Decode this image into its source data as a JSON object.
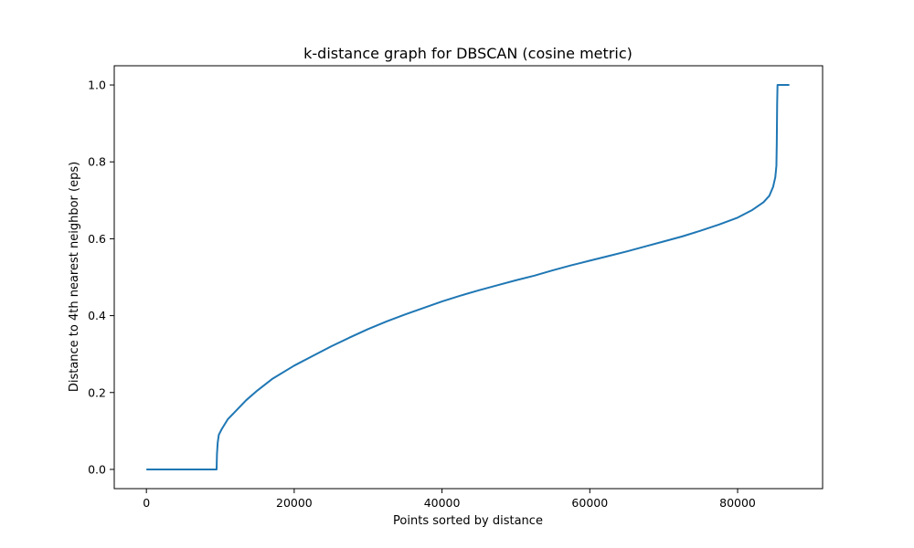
{
  "chart_data": {
    "type": "line",
    "title": "k-distance graph for DBSCAN (cosine metric)",
    "xlabel": "Points sorted by distance",
    "ylabel": "Distance to 4th nearest neighbor (eps)",
    "xlim": [
      -4350,
      91500
    ],
    "ylim": [
      -0.05,
      1.05
    ],
    "xticks": [
      0,
      20000,
      40000,
      60000,
      80000
    ],
    "yticks": [
      0.0,
      0.2,
      0.4,
      0.6,
      0.8,
      1.0
    ],
    "xtick_labels": [
      "0",
      "20000",
      "40000",
      "60000",
      "80000"
    ],
    "ytick_labels": [
      "0.0",
      "0.2",
      "0.4",
      "0.6",
      "0.8",
      "1.0"
    ],
    "grid": false,
    "series": [
      {
        "color": "#1f77b4",
        "x": [
          0,
          9500,
          9550,
          9650,
          9800,
          10200,
          11000,
          12000,
          13500,
          15000,
          17000,
          20000,
          22500,
          25000,
          27500,
          30000,
          32500,
          35000,
          37500,
          40000,
          42500,
          45000,
          47500,
          50000,
          52500,
          55000,
          57500,
          60000,
          62500,
          65000,
          67500,
          70000,
          72500,
          75000,
          77500,
          80000,
          82000,
          83500,
          84300,
          84800,
          85100,
          85250,
          85300,
          85350,
          85400,
          87000
        ],
        "y": [
          0.0,
          0.0,
          0.04,
          0.07,
          0.09,
          0.105,
          0.13,
          0.15,
          0.18,
          0.205,
          0.235,
          0.27,
          0.295,
          0.32,
          0.343,
          0.365,
          0.385,
          0.403,
          0.42,
          0.437,
          0.452,
          0.466,
          0.479,
          0.492,
          0.504,
          0.518,
          0.531,
          0.543,
          0.555,
          0.567,
          0.58,
          0.593,
          0.606,
          0.621,
          0.637,
          0.655,
          0.675,
          0.695,
          0.712,
          0.735,
          0.76,
          0.79,
          0.85,
          0.95,
          1.0,
          1.0
        ]
      }
    ]
  }
}
